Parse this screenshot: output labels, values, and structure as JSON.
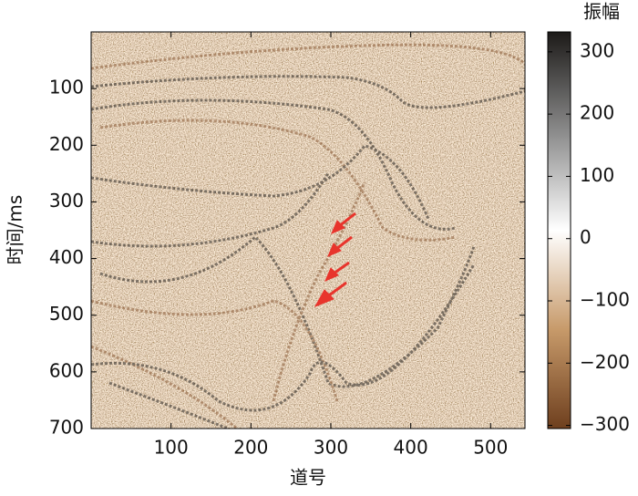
{
  "chart_data": {
    "type": "image",
    "x_label": "道号",
    "y_label": "时间/ms",
    "colorbar_label": "振幅",
    "xlim": [
      0,
      543
    ],
    "xticks": [
      100,
      200,
      300,
      400,
      500
    ],
    "ylim": [
      700,
      0
    ],
    "yticks": [
      100,
      200,
      300,
      400,
      500,
      600,
      700
    ],
    "clim": [
      -305,
      332
    ],
    "cticks": [
      {
        "value": -300,
        "label": "−300"
      },
      {
        "value": -200,
        "label": "−200"
      },
      {
        "value": -100,
        "label": "−100"
      },
      0,
      100,
      200,
      300
    ],
    "colormap": [
      "#6e3f1e",
      "#c79a6a",
      "#ffffff",
      "#8a8a8a",
      "#1c1a18"
    ]
  }
}
